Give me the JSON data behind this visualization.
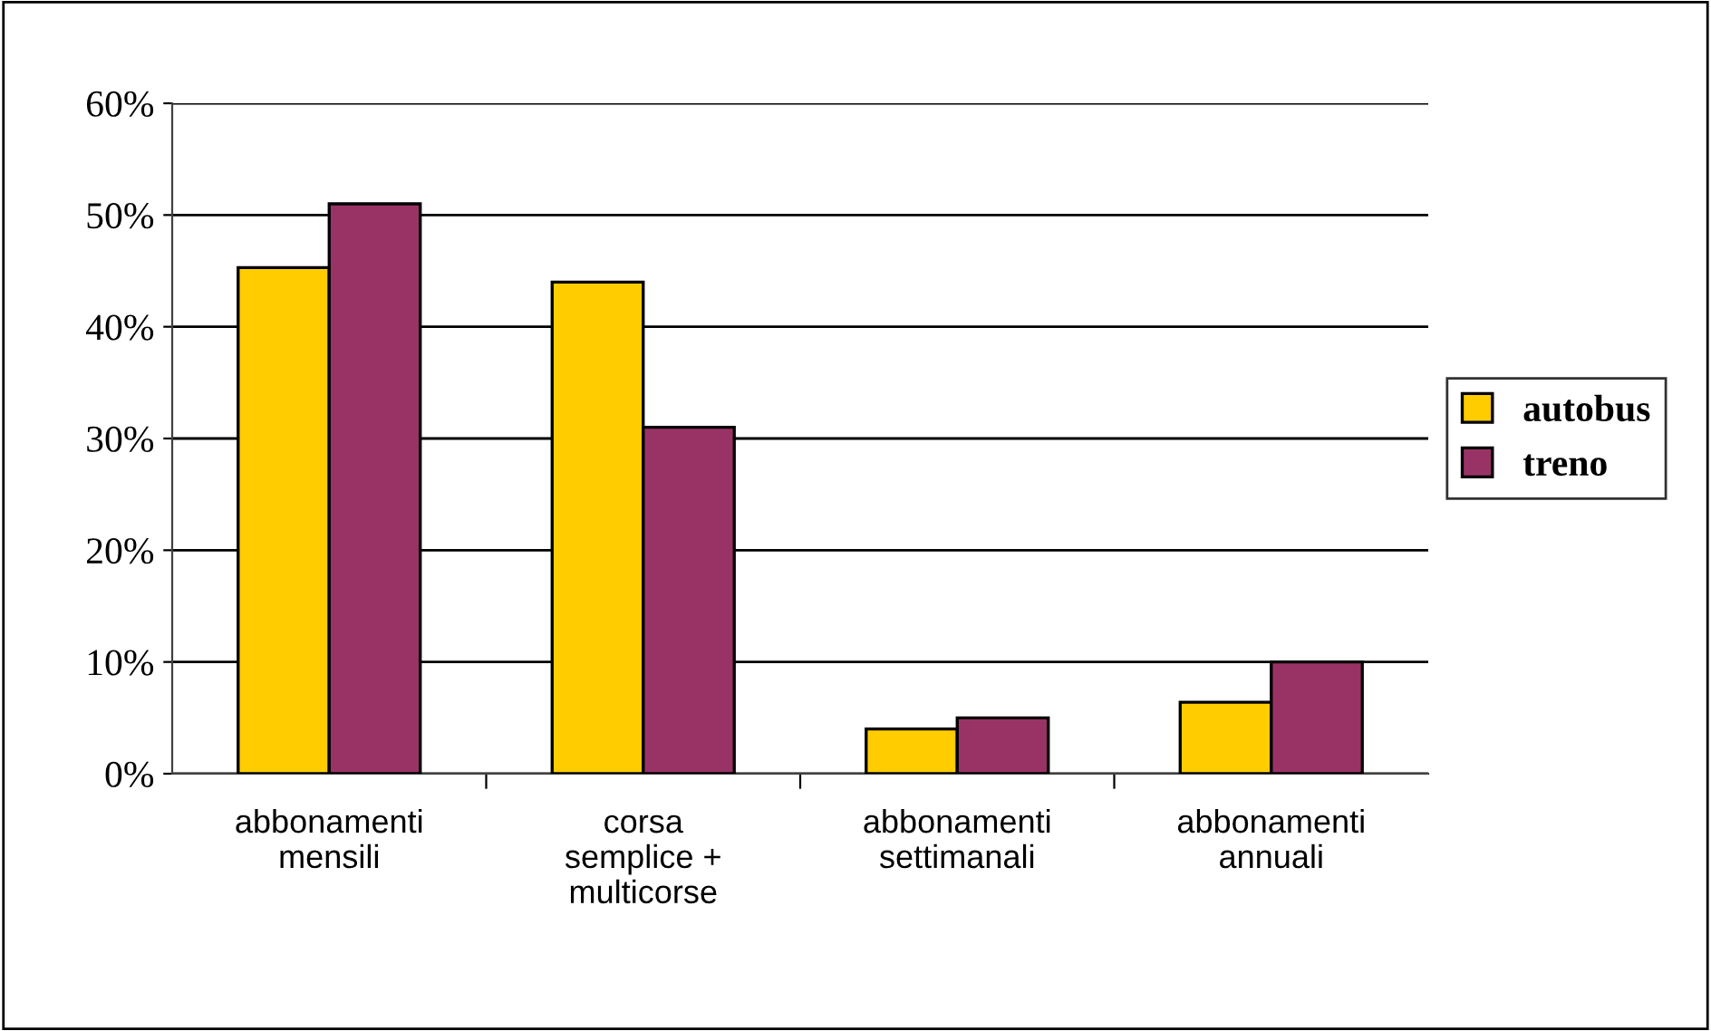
{
  "chart_data": {
    "type": "bar",
    "categories": [
      "abbonamenti\nmensili",
      "corsa\nsemplice +\nmulticorse",
      "abbonamenti\nsettimanali",
      "abbonamenti\nannuali"
    ],
    "series": [
      {
        "name": "autobus",
        "color": "#ffcc00",
        "values": [
          45.3,
          44,
          4,
          6.4
        ]
      },
      {
        "name": "treno",
        "color": "#993366",
        "values": [
          51,
          31,
          5,
          10
        ]
      }
    ],
    "ylim": [
      0,
      60
    ],
    "yticks": [
      {
        "value": 0,
        "label": "0%"
      },
      {
        "value": 10,
        "label": "10%"
      },
      {
        "value": 20,
        "label": "20%"
      },
      {
        "value": 30,
        "label": "30%"
      },
      {
        "value": 40,
        "label": "40%"
      },
      {
        "value": 50,
        "label": "50%"
      },
      {
        "value": 60,
        "label": "60%"
      }
    ],
    "grid": "y",
    "legend": "right"
  }
}
